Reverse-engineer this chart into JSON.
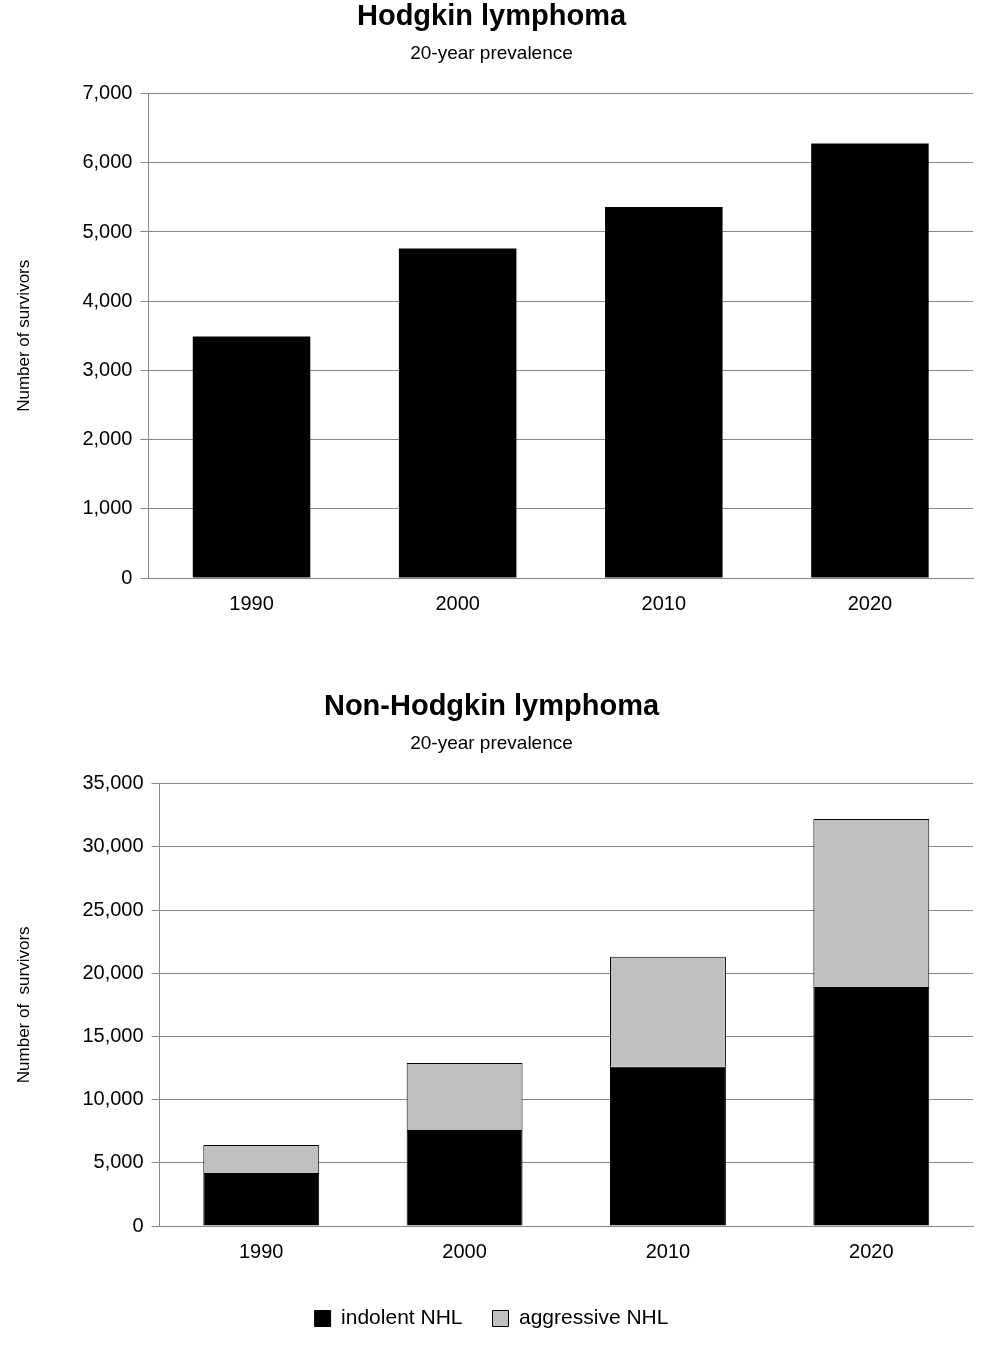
{
  "chart_data": [
    {
      "type": "bar",
      "title": "Hodgkin lymphoma",
      "subtitle": "20-year prevalence",
      "ylabel": "Number of survivors",
      "categories": [
        "1990",
        "2000",
        "2010",
        "2020"
      ],
      "values": [
        3490,
        4760,
        5360,
        6280
      ],
      "color": "#000000",
      "ylim": [
        0,
        7000
      ],
      "yticks": [
        0,
        {
          "value": 1000,
          "label": "1,000"
        },
        {
          "value": 2000,
          "label": "2,000"
        },
        {
          "value": 3000,
          "label": "3,000"
        },
        {
          "value": 4000,
          "label": "4,000"
        },
        {
          "value": 5000,
          "label": "5,000"
        },
        {
          "value": 6000,
          "label": "6,000"
        },
        {
          "value": 7000,
          "label": "7,000"
        }
      ],
      "grid": "y"
    },
    {
      "type": "bar",
      "title": "Non-Hodgkin lymphoma",
      "subtitle": "20-year prevalence",
      "ylabel": "Number of  survivors",
      "categories": [
        "1990",
        "2000",
        "2010",
        "2020"
      ],
      "stacked": true,
      "series": [
        {
          "name": "indolent NHL",
          "color": "#000000",
          "values": [
            4200,
            7600,
            12600,
            18900
          ]
        },
        {
          "name": "aggressive NHL",
          "color": "#c0c0c0",
          "values": [
            2200,
            5300,
            8700,
            13300
          ]
        }
      ],
      "ylim": [
        0,
        35000
      ],
      "yticks": [
        0,
        {
          "value": 5000,
          "label": "5,000"
        },
        {
          "value": 10000,
          "label": "10,000"
        },
        {
          "value": 15000,
          "label": "15,000"
        },
        {
          "value": 20000,
          "label": "20,000"
        },
        {
          "value": 25000,
          "label": "25,000"
        },
        {
          "value": 30000,
          "label": "30,000"
        },
        {
          "value": 35000,
          "label": "35,000"
        }
      ],
      "grid": "y",
      "legend": "bottom"
    }
  ]
}
